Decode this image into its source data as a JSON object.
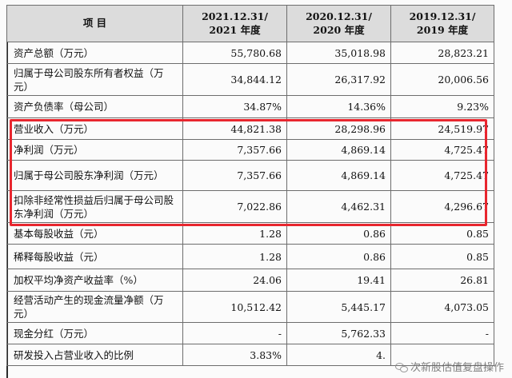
{
  "table": {
    "headers": [
      "项 目",
      "2021.12.31/ 2021 年度",
      "2020.12.31/ 2020 年度",
      "2019.12.31/ 2019 年度"
    ],
    "header_lines": [
      [
        "项 目"
      ],
      [
        "2021.12.31/",
        "2021 年度"
      ],
      [
        "2020.12.31/",
        "2020 年度"
      ],
      [
        "2019.12.31/",
        "2019 年度"
      ]
    ],
    "rows": [
      {
        "label": "资产总额（万元）",
        "values": [
          "55,780.68",
          "35,018.98",
          "28,823.21"
        ]
      },
      {
        "label": "归属于母公司股东所有者权益（万元）",
        "values": [
          "34,844.12",
          "26,317.92",
          "20,006.56"
        ]
      },
      {
        "label": "资产负债率（母公司）",
        "values": [
          "34.87%",
          "14.36%",
          "9.23%"
        ]
      },
      {
        "label": "营业收入（万元）",
        "values": [
          "44,821.38",
          "28,298.96",
          "24,519.97"
        ]
      },
      {
        "label": "净利润（万元）",
        "values": [
          "7,357.66",
          "4,869.14",
          "4,725.47"
        ]
      },
      {
        "label": "归属于母公司股东净利润（万元）",
        "values": [
          "7,357.66",
          "4,869.14",
          "4,725.47"
        ]
      },
      {
        "label": "扣除非经常性损益后归属于母公司股东净利润（万元）",
        "values": [
          "7,022.86",
          "4,462.31",
          "4,296.67"
        ]
      },
      {
        "label": "基本每股收益（元）",
        "values": [
          "1.28",
          "0.86",
          "0.85"
        ]
      },
      {
        "label": "稀释每股收益（元）",
        "values": [
          "1.28",
          "0.86",
          "0.85"
        ]
      },
      {
        "label": "加权平均净资产收益率（%）",
        "values": [
          "24.06",
          "19.41",
          "26.81"
        ]
      },
      {
        "label": "经营活动产生的现金流量净额（万元）",
        "values": [
          "10,512.42",
          "5,445.17",
          "4,073.05"
        ]
      },
      {
        "label": "现金分红（万元）",
        "values": [
          "-",
          "5,762.33",
          "-"
        ]
      },
      {
        "label": "研发投入占营业收入的比例",
        "values": [
          "3.83%",
          "4.",
          ""
        ]
      }
    ]
  },
  "highlight_color": "#e8262e",
  "watermark": {
    "text": "次新股估值复盘操作",
    "icon": "wechat-icon"
  }
}
